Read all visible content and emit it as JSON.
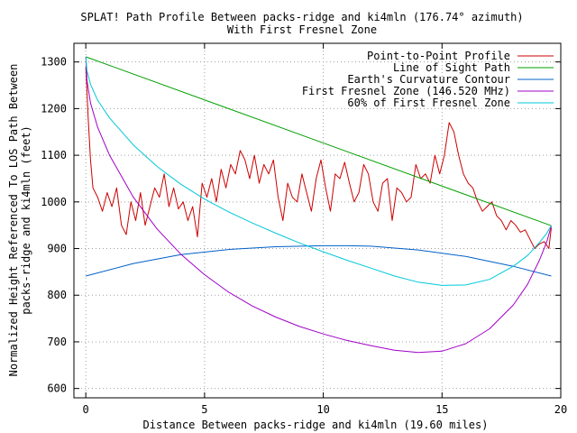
{
  "chart_data": {
    "type": "line",
    "title": "SPLAT! Path Profile Between packs-ridge and ki4mln (176.74° azimuth)",
    "subtitle": "With First Fresnel Zone",
    "xlabel": "Distance Between packs-ridge and ki4mln (19.60 miles)",
    "ylabel": [
      "Normalized Height Referenced To LOS Path Between",
      "packs-ridge and ki4mln (feet)"
    ],
    "xlim": [
      -0.5,
      20
    ],
    "ylim": [
      580,
      1340
    ],
    "xticks": [
      0,
      5,
      10,
      15,
      20
    ],
    "xtick_labels": [
      "0",
      "5",
      "10",
      "15",
      "20"
    ],
    "yticks": [
      600,
      700,
      800,
      900,
      1000,
      1100,
      1200,
      1300
    ],
    "ytick_labels": [
      "600",
      "700",
      "800",
      "900",
      "1000",
      "1100",
      "1200",
      "1300"
    ],
    "grid": true,
    "legend_position": "top-right",
    "series": [
      {
        "name": "Point-to-Point Profile",
        "color": "#cc0000",
        "x": [
          0,
          0.1,
          0.2,
          0.3,
          0.5,
          0.7,
          0.9,
          1.1,
          1.3,
          1.5,
          1.7,
          1.9,
          2.1,
          2.3,
          2.5,
          2.7,
          2.9,
          3.1,
          3.3,
          3.5,
          3.7,
          3.9,
          4.1,
          4.3,
          4.5,
          4.7,
          4.9,
          5.1,
          5.3,
          5.5,
          5.7,
          5.9,
          6.1,
          6.3,
          6.5,
          6.7,
          6.9,
          7.1,
          7.3,
          7.5,
          7.7,
          7.9,
          8.1,
          8.3,
          8.5,
          8.7,
          8.9,
          9.1,
          9.3,
          9.5,
          9.7,
          9.9,
          10.1,
          10.3,
          10.5,
          10.7,
          10.9,
          11.1,
          11.3,
          11.5,
          11.7,
          11.9,
          12.1,
          12.3,
          12.5,
          12.7,
          12.9,
          13.1,
          13.3,
          13.5,
          13.7,
          13.9,
          14.1,
          14.3,
          14.5,
          14.7,
          14.9,
          15.1,
          15.3,
          15.5,
          15.7,
          15.9,
          16.1,
          16.3,
          16.5,
          16.7,
          16.9,
          17.1,
          17.3,
          17.5,
          17.7,
          17.9,
          18.1,
          18.3,
          18.5,
          18.7,
          18.9,
          19.1,
          19.3,
          19.5,
          19.6
        ],
        "values": [
          1290,
          1180,
          1090,
          1030,
          1010,
          980,
          1020,
          990,
          1030,
          950,
          930,
          1000,
          960,
          1020,
          950,
          990,
          1030,
          1010,
          1060,
          990,
          1030,
          985,
          1000,
          960,
          990,
          925,
          1040,
          1010,
          1050,
          1000,
          1070,
          1030,
          1080,
          1060,
          1110,
          1090,
          1050,
          1100,
          1040,
          1080,
          1060,
          1090,
          1010,
          960,
          1040,
          1010,
          1000,
          1060,
          1020,
          980,
          1050,
          1090,
          1030,
          980,
          1060,
          1050,
          1085,
          1040,
          1000,
          1020,
          1080,
          1060,
          1000,
          980,
          1040,
          1050,
          960,
          1030,
          1020,
          1000,
          1010,
          1080,
          1050,
          1060,
          1040,
          1100,
          1060,
          1100,
          1170,
          1150,
          1100,
          1060,
          1040,
          1030,
          1000,
          980,
          990,
          1000,
          970,
          960,
          940,
          960,
          950,
          935,
          940,
          920,
          900,
          910,
          915,
          900,
          945
        ]
      },
      {
        "name": "Line of Sight Path",
        "color": "#00a000",
        "x": [
          0,
          19.6
        ],
        "values": [
          1311,
          949
        ]
      },
      {
        "name": "Earth's Curvature Contour",
        "color": "#0060c8",
        "x": [
          0,
          2,
          4,
          6,
          8,
          10,
          11,
          12,
          14,
          16,
          18,
          19.6
        ],
        "values": [
          841,
          868,
          887,
          898,
          904,
          906,
          906,
          905,
          897,
          883,
          862,
          841
        ]
      },
      {
        "name": "First Fresnel Zone (146.520 MHz)",
        "color": "#a000c8",
        "x": [
          0,
          0.05,
          0.2,
          0.5,
          1,
          2,
          3,
          4,
          5,
          6,
          7,
          8,
          9,
          10,
          11,
          12,
          13,
          14,
          15,
          16,
          17,
          18,
          18.6,
          19.1,
          19.4,
          19.55,
          19.6
        ],
        "values": [
          1311,
          1260,
          1212,
          1160,
          1100,
          1010,
          942,
          888,
          844,
          807,
          777,
          753,
          733,
          717,
          703,
          692,
          682,
          677,
          680,
          696,
          728,
          779,
          823,
          875,
          913,
          939,
          949
        ]
      },
      {
        "name": "60% of First Fresnel Zone",
        "color": "#00c8d8",
        "x": [
          0,
          0.05,
          0.2,
          0.5,
          1,
          2,
          3,
          4,
          5,
          6,
          7,
          8,
          9,
          10,
          11,
          12,
          13,
          14,
          15,
          16,
          17,
          18,
          18.6,
          19.1,
          19.4,
          19.55,
          19.6
        ],
        "values": [
          1311,
          1281,
          1252,
          1218,
          1180,
          1122,
          1076,
          1038,
          1006,
          979,
          955,
          933,
          912,
          893,
          875,
          858,
          841,
          828,
          821,
          822,
          834,
          862,
          885,
          913,
          932,
          945,
          949
        ]
      }
    ]
  }
}
